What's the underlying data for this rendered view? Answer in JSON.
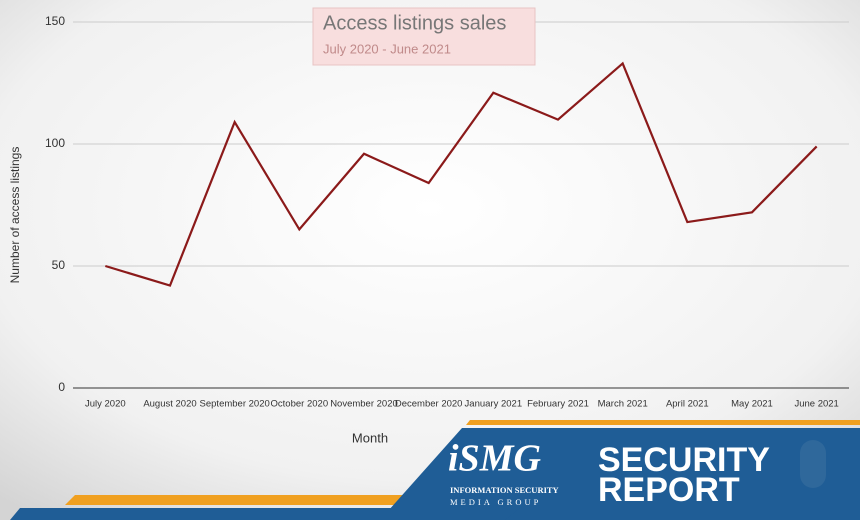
{
  "chart_data": {
    "type": "line",
    "title": "Access listings sales",
    "subtitle": "July 2020 - June 2021",
    "x_label": "Month",
    "y_label": "Number of access listings",
    "categories": [
      "July 2020",
      "August 2020",
      "September 2020",
      "October 2020",
      "November 2020",
      "December 2020",
      "January 2021",
      "February 2021",
      "March 2021",
      "April 2021",
      "May 2021",
      "June 2021"
    ],
    "series": [
      {
        "name": "Access listings",
        "color": "#8b1a1a",
        "values": [
          50,
          42,
          109,
          65,
          96,
          84,
          121,
          110,
          133,
          68,
          72,
          99
        ]
      }
    ],
    "ylim": [
      0,
      150
    ],
    "yticks": [
      0,
      50,
      100,
      150
    ],
    "grid": true
  },
  "branding": {
    "logo": "iSMG",
    "logo_line1": "INFORMATION SECURITY",
    "logo_line2": "MEDIA GROUP",
    "title_line1": "SECURITY",
    "title_line2": "REPORT"
  }
}
